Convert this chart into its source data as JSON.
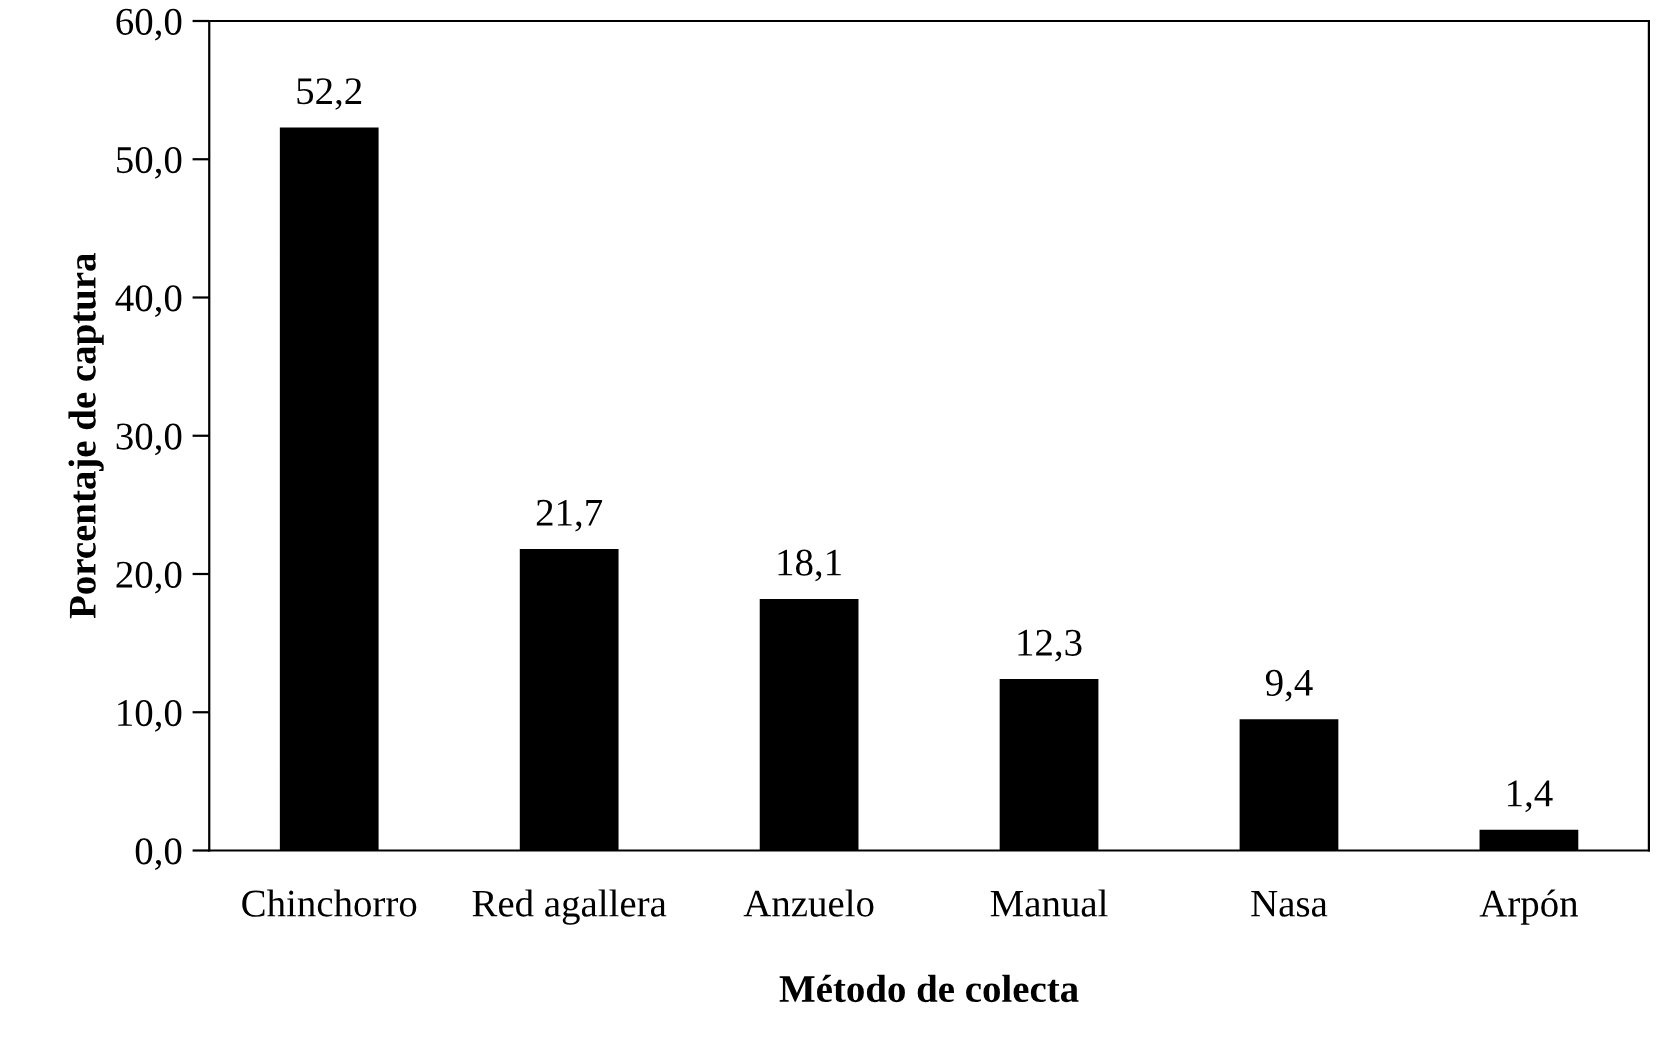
{
  "chart_data": {
    "type": "bar",
    "xlabel": "Método de colecta",
    "ylabel": "Porcentaje de captura",
    "categories": [
      "Chinchorro",
      "Red agallera",
      "Anzuelo",
      "Manual",
      "Nasa",
      "Arpón"
    ],
    "values": [
      52.2,
      21.7,
      18.1,
      12.3,
      9.4,
      1.4
    ],
    "value_labels": [
      "52,2",
      "21,7",
      "18,1",
      "12,3",
      "9,4",
      "1,4"
    ],
    "color": "#000000",
    "ylim": [
      0,
      60
    ],
    "yticks": [
      {
        "value": 0,
        "label": "0,0"
      },
      {
        "value": 10,
        "label": "10,0"
      },
      {
        "value": 20,
        "label": "20,0"
      },
      {
        "value": 30,
        "label": "30,0"
      },
      {
        "value": 40,
        "label": "40,0"
      },
      {
        "value": 50,
        "label": "50,0"
      },
      {
        "value": 60,
        "label": "60,0"
      }
    ],
    "grid": false,
    "legend": false
  }
}
